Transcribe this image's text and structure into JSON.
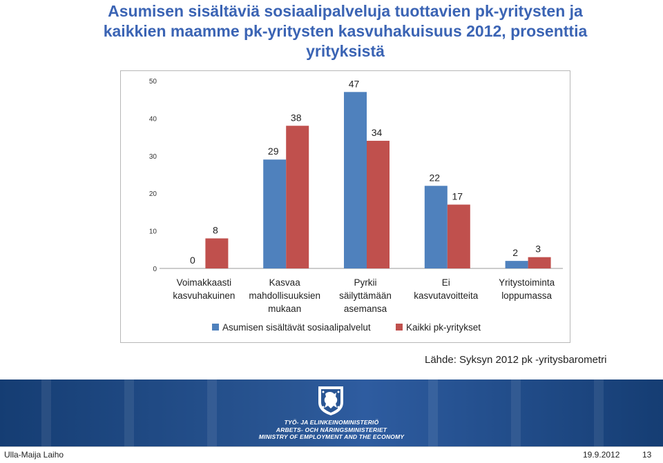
{
  "title": "Asumisen sisältäviä sosiaalipalveluja tuottavien pk-yritysten ja kaikkien maamme pk-yritysten kasvuhakuisuus 2012, prosenttia yrityksistä",
  "chart_data": {
    "type": "bar",
    "categories": [
      [
        "Voimakkaasti",
        "kasvuhakuinen"
      ],
      [
        "Kasvaa",
        "mahdollisuuksien",
        "mukaan"
      ],
      [
        "Pyrkii",
        "säilyttämään",
        "asemansa"
      ],
      [
        "Ei",
        "kasvutavoitteita"
      ],
      [
        "Yritystoiminta",
        "loppumassa"
      ]
    ],
    "series": [
      {
        "name": "Asumisen sisältävät sosiaalipalvelut",
        "color": "#4f81bd",
        "values": [
          0,
          29,
          47,
          22,
          2
        ]
      },
      {
        "name": "Kaikki pk-yritykset",
        "color": "#c0504d",
        "values": [
          8,
          38,
          34,
          17,
          3
        ]
      }
    ],
    "ylabel": "Prosenttia yrityksistä",
    "ylim": [
      0,
      50
    ],
    "yticks": [
      "0",
      "10",
      "20",
      "30",
      "40",
      "50"
    ],
    "legend": "bottom",
    "grid": false
  },
  "source": "Lähde: Syksyn 2012 pk -yritysbarometri",
  "ministry": {
    "line1": "TYÖ- JA ELINKEINOMINISTERIÖ",
    "line2": "ARBETS- OCH NÄRINGSMINISTERIET",
    "line3": "MINISTRY OF EMPLOYMENT AND THE ECONOMY"
  },
  "footer": {
    "author": "Ulla-Maija Laiho",
    "date": "19.9.2012",
    "page": "13"
  },
  "colors": {
    "title": "#3b64b4",
    "band": "#2a5694"
  }
}
